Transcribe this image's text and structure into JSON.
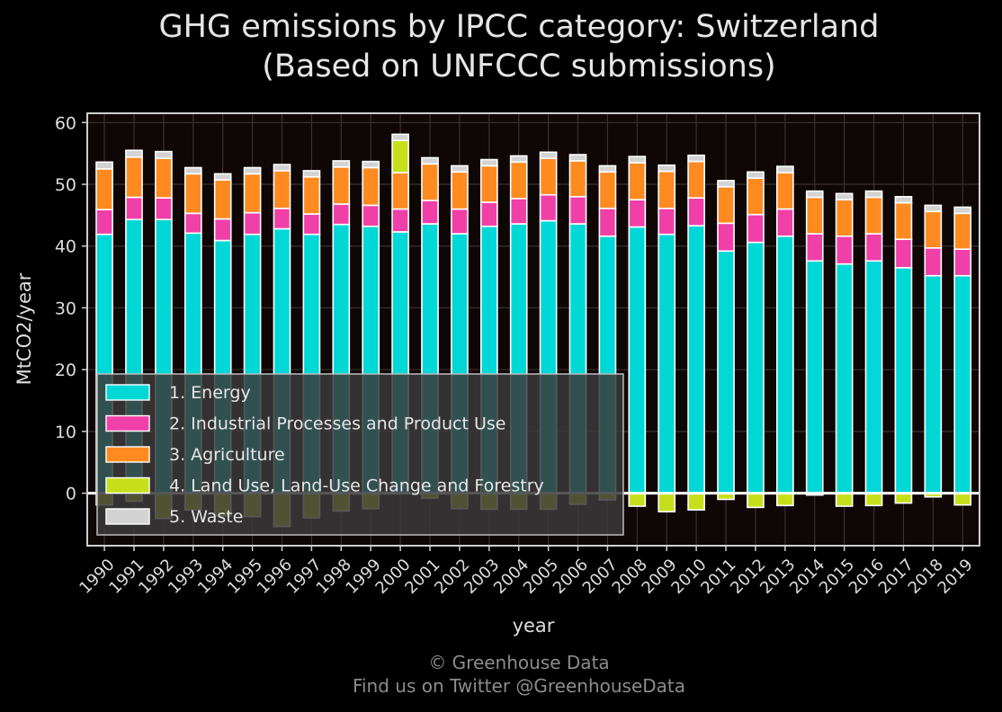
{
  "header": {
    "title_line1": "GHG emissions by IPCC category: Switzerland",
    "title_line2": "(Based on UNFCCC submissions)"
  },
  "footer": {
    "line1": "© Greenhouse Data",
    "line2": "Find us on Twitter @GreenhouseData"
  },
  "chart_data": {
    "type": "bar",
    "stacked": true,
    "title": "GHG emissions by IPCC category: Switzerland (Based on UNFCCC submissions)",
    "xlabel": "year",
    "ylabel": "MtCO2/year",
    "ylim": [
      -8.5,
      61.5
    ],
    "yticks": [
      0,
      10,
      20,
      30,
      40,
      50,
      60
    ],
    "grid": true,
    "legend_position": "lower-left",
    "background": "#0f0606",
    "categories": [
      "1990",
      "1991",
      "1992",
      "1993",
      "1994",
      "1995",
      "1996",
      "1997",
      "1998",
      "1999",
      "2000",
      "2001",
      "2002",
      "2003",
      "2004",
      "2005",
      "2006",
      "2007",
      "2008",
      "2009",
      "2010",
      "2011",
      "2012",
      "2013",
      "2014",
      "2015",
      "2016",
      "2017",
      "2018",
      "2019"
    ],
    "series": [
      {
        "name": "1. Energy",
        "color": "#00d7d7",
        "values": [
          41.9,
          44.3,
          44.3,
          42.1,
          40.9,
          41.9,
          42.8,
          41.9,
          43.5,
          43.2,
          42.3,
          43.6,
          42.0,
          43.2,
          43.6,
          44.1,
          43.6,
          41.6,
          43.1,
          41.9,
          43.3,
          39.2,
          40.6,
          41.6,
          37.6,
          37.1,
          37.6,
          36.5,
          35.2,
          35.2
        ]
      },
      {
        "name": "2. Industrial Processes and Product Use",
        "color": "#f040a8",
        "values": [
          4.0,
          3.6,
          3.5,
          3.2,
          3.5,
          3.5,
          3.3,
          3.3,
          3.3,
          3.4,
          3.7,
          3.8,
          4.0,
          3.9,
          4.1,
          4.2,
          4.4,
          4.5,
          4.4,
          4.2,
          4.5,
          4.5,
          4.5,
          4.4,
          4.4,
          4.5,
          4.4,
          4.6,
          4.5,
          4.3
        ]
      },
      {
        "name": "3. Agriculture",
        "color": "#ff8a20",
        "values": [
          6.6,
          6.5,
          6.4,
          6.4,
          6.3,
          6.3,
          6.1,
          6.0,
          6.0,
          6.1,
          5.9,
          5.9,
          6.0,
          5.9,
          5.9,
          5.9,
          5.8,
          5.9,
          6.0,
          6.0,
          5.9,
          5.9,
          5.9,
          5.9,
          5.9,
          5.9,
          5.9,
          5.9,
          5.9,
          5.8
        ]
      },
      {
        "name": "4. Land Use, Land-Use Change and Forestry",
        "color": "#c5e01a",
        "values": [
          -1.9,
          -1.3,
          -4.1,
          -2.7,
          -3.7,
          -3.8,
          -5.4,
          -4.0,
          -2.9,
          -2.5,
          5.2,
          -0.8,
          -2.5,
          -2.6,
          -2.6,
          -2.6,
          -1.8,
          -1.1,
          -2.1,
          -3.0,
          -2.7,
          -1.0,
          -2.3,
          -2.0,
          -0.3,
          -2.1,
          -2.0,
          -1.6,
          -0.6,
          -1.9
        ]
      },
      {
        "name": "5. Waste",
        "color": "#d3d3d3",
        "values": [
          1.1,
          1.1,
          1.1,
          1.0,
          1.0,
          1.0,
          1.0,
          1.0,
          1.0,
          1.0,
          1.0,
          1.0,
          1.0,
          1.0,
          1.0,
          1.0,
          1.0,
          1.0,
          1.0,
          1.0,
          1.0,
          1.0,
          1.0,
          1.0,
          1.0,
          1.0,
          1.0,
          1.0,
          1.0,
          1.0
        ]
      }
    ]
  }
}
